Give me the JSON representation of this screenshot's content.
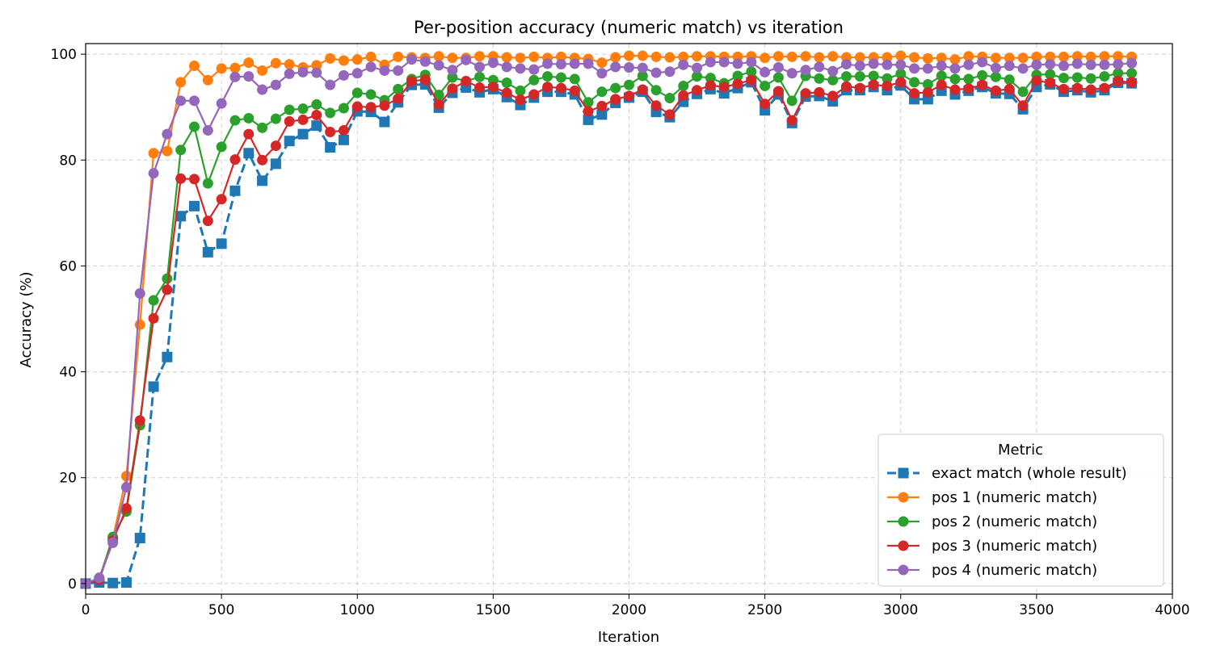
{
  "chart_data": {
    "type": "line",
    "title": "Per-position accuracy (numeric match) vs iteration",
    "xlabel": "Iteration",
    "ylabel": "Accuracy (%)",
    "xlim": [
      0,
      4000
    ],
    "ylim": [
      -2,
      102
    ],
    "xticks": [
      0,
      500,
      1000,
      1500,
      2000,
      2500,
      3000,
      3500,
      4000
    ],
    "yticks": [
      0,
      20,
      40,
      60,
      80,
      100
    ],
    "grid": true,
    "legend": {
      "title": "Metric",
      "placement": "lower-right"
    },
    "x": [
      0,
      50,
      100,
      150,
      200,
      250,
      300,
      350,
      400,
      450,
      500,
      550,
      600,
      650,
      700,
      750,
      800,
      850,
      900,
      950,
      1000,
      1050,
      1100,
      1150,
      1200,
      1250,
      1300,
      1350,
      1400,
      1450,
      1500,
      1550,
      1600,
      1650,
      1700,
      1750,
      1800,
      1850,
      1900,
      1950,
      2000,
      2050,
      2100,
      2150,
      2200,
      2250,
      2300,
      2350,
      2400,
      2450,
      2500,
      2550,
      2600,
      2650,
      2700,
      2750,
      2800,
      2850,
      2900,
      2950,
      3000,
      3050,
      3100,
      3150,
      3200,
      3250,
      3300,
      3350,
      3400,
      3450,
      3500,
      3550,
      3600,
      3650,
      3700,
      3750,
      3800,
      3850
    ],
    "series": [
      {
        "name": "exact match (whole result)",
        "color": "#1f77b4",
        "marker": "square",
        "linestyle": "dashed",
        "values": [
          0,
          0.2,
          0.1,
          0.2,
          8.6,
          37.2,
          42.8,
          69.4,
          71.3,
          62.6,
          64.2,
          74.2,
          81.3,
          76.1,
          79.3,
          83.6,
          84.9,
          86.5,
          82.4,
          83.8,
          89.2,
          89.1,
          87.2,
          90.9,
          94.2,
          94.3,
          89.9,
          92.7,
          93.7,
          92.8,
          93.4,
          91.9,
          90.4,
          91.8,
          92.9,
          92.9,
          92.4,
          87.6,
          88.6,
          90.8,
          91.8,
          92.9,
          89.1,
          88.1,
          91.0,
          92.5,
          93.4,
          92.6,
          93.6,
          94.7,
          89.4,
          92.4,
          87.0,
          92.0,
          92.1,
          91.1,
          93.2,
          93.2,
          93.8,
          93.2,
          94.1,
          91.5,
          91.5,
          93.1,
          92.4,
          93.1,
          93.8,
          92.6,
          92.5,
          89.6,
          93.8,
          94.3,
          92.9,
          93.2,
          92.8,
          93.2,
          94.6,
          94.5
        ]
      },
      {
        "name": "pos 1 (numeric match)",
        "color": "#ff7f0e",
        "marker": "circle",
        "linestyle": "solid",
        "values": [
          0,
          1.0,
          8.5,
          20.3,
          48.9,
          81.3,
          81.7,
          94.7,
          97.8,
          95.1,
          97.3,
          97.4,
          98.4,
          96.9,
          98.3,
          98.1,
          97.5,
          97.9,
          99.2,
          98.8,
          99.0,
          99.5,
          98.0,
          99.5,
          99.4,
          99.3,
          99.6,
          99.3,
          99.3,
          99.6,
          99.6,
          99.4,
          99.3,
          99.5,
          99.3,
          99.5,
          99.3,
          99.1,
          98.4,
          99.4,
          99.7,
          99.7,
          99.5,
          99.4,
          99.5,
          99.6,
          99.6,
          99.5,
          99.5,
          99.6,
          99.3,
          99.6,
          99.5,
          99.6,
          99.4,
          99.6,
          99.4,
          99.4,
          99.4,
          99.4,
          99.7,
          99.4,
          99.2,
          99.3,
          99.0,
          99.6,
          99.5,
          99.3,
          99.3,
          99.3,
          99.5,
          99.5,
          99.5,
          99.6,
          99.5,
          99.6,
          99.6,
          99.5
        ]
      },
      {
        "name": "pos 2 (numeric match)",
        "color": "#2ca02c",
        "marker": "circle",
        "linestyle": "solid",
        "values": [
          0,
          0.8,
          8.8,
          13.6,
          29.9,
          53.5,
          57.6,
          81.9,
          86.3,
          75.6,
          82.5,
          87.5,
          87.9,
          86.1,
          87.8,
          89.5,
          89.7,
          90.5,
          88.9,
          89.8,
          92.7,
          92.4,
          91.3,
          93.4,
          95.3,
          96.1,
          92.3,
          95.6,
          94.9,
          95.7,
          95.1,
          94.6,
          93.1,
          95.1,
          95.8,
          95.6,
          95.3,
          90.9,
          92.9,
          93.6,
          94.2,
          95.9,
          93.2,
          91.7,
          94.0,
          95.8,
          95.5,
          94.5,
          95.9,
          96.7,
          94.0,
          95.6,
          91.2,
          95.9,
          95.4,
          95.1,
          95.8,
          95.8,
          95.9,
          95.4,
          96.3,
          94.7,
          94.3,
          95.9,
          95.3,
          95.3,
          96.0,
          95.7,
          95.2,
          92.9,
          96.1,
          96.2,
          95.5,
          95.6,
          95.4,
          95.8,
          96.4,
          96.4
        ]
      },
      {
        "name": "pos 3 (numeric match)",
        "color": "#d62728",
        "marker": "circle",
        "linestyle": "solid",
        "values": [
          0,
          0.7,
          8.1,
          14.2,
          30.8,
          50.1,
          55.5,
          76.5,
          76.4,
          68.5,
          72.6,
          80.1,
          84.9,
          80.0,
          82.7,
          87.3,
          87.6,
          88.5,
          85.3,
          85.6,
          90.1,
          90.0,
          90.3,
          91.6,
          94.9,
          95.2,
          90.5,
          93.5,
          94.9,
          93.7,
          93.8,
          92.7,
          91.4,
          92.4,
          93.8,
          93.6,
          93.1,
          89.2,
          90.2,
          91.5,
          92.1,
          93.3,
          90.3,
          88.6,
          92.2,
          93.2,
          94.1,
          93.8,
          94.4,
          95.1,
          90.6,
          93.0,
          87.5,
          92.6,
          92.8,
          92.1,
          93.9,
          93.6,
          94.2,
          94.0,
          94.7,
          92.6,
          92.8,
          94.2,
          93.3,
          93.5,
          94.2,
          93.1,
          93.4,
          90.3,
          95.0,
          94.6,
          93.4,
          93.6,
          93.3,
          93.6,
          94.9,
          94.7
        ]
      },
      {
        "name": "pos 4 (numeric match)",
        "color": "#9467bd",
        "marker": "circle",
        "linestyle": "solid",
        "values": [
          0,
          1.1,
          7.7,
          18.2,
          54.8,
          77.5,
          84.9,
          91.2,
          91.2,
          85.6,
          90.7,
          95.7,
          95.8,
          93.3,
          94.2,
          96.3,
          96.6,
          96.5,
          94.2,
          96.0,
          96.4,
          97.6,
          96.9,
          96.9,
          99.0,
          98.6,
          97.9,
          97.0,
          98.9,
          97.6,
          98.4,
          97.6,
          97.3,
          97.1,
          98.2,
          98.1,
          98.2,
          98.2,
          96.4,
          97.6,
          97.5,
          97.4,
          96.5,
          96.7,
          98.0,
          97.4,
          98.5,
          98.5,
          98.2,
          98.5,
          96.6,
          97.5,
          96.4,
          97.0,
          97.6,
          96.8,
          98.1,
          97.8,
          98.2,
          98.0,
          98.0,
          97.3,
          97.3,
          97.8,
          97.3,
          98.0,
          98.5,
          97.4,
          97.8,
          97.3,
          98.0,
          98.1,
          97.8,
          98.2,
          98.0,
          98.0,
          98.1,
          98.3
        ]
      }
    ]
  }
}
